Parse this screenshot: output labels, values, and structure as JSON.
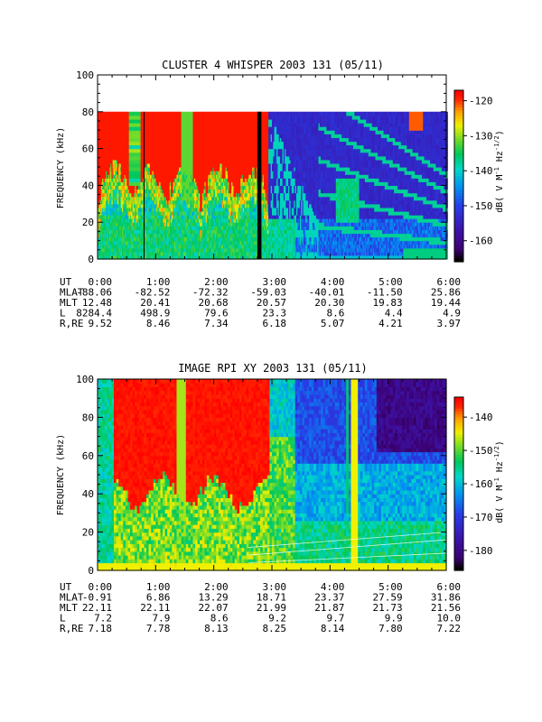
{
  "panels": [
    {
      "title": "CLUSTER 4 WHISPER 2003 131 (05/11)",
      "ylabel": "FREQUENCY (kHz)",
      "cbar_label_main": "dB( V M",
      "cbar_label_sup1": "-1",
      "cbar_label_mid": " Hz",
      "cbar_label_sup2": "-1/2",
      "cbar_label_end": ")",
      "rows": [
        {
          "label": "UT",
          "values": [
            "0:00",
            "1:00",
            "2:00",
            "3:00",
            "4:00",
            "5:00",
            "6:00"
          ]
        },
        {
          "label": "MLAT",
          "values": [
            "-88.06",
            "-82.52",
            "-72.32",
            "-59.03",
            "-40.01",
            "-11.50",
            "25.86"
          ]
        },
        {
          "label": "MLT",
          "values": [
            "12.48",
            "20.41",
            "20.68",
            "20.57",
            "20.30",
            "19.83",
            "19.44"
          ]
        },
        {
          "label": "L",
          "values": [
            "8284.4",
            "498.9",
            "79.6",
            "23.3",
            "8.6",
            "4.4",
            "4.9"
          ]
        },
        {
          "label": "R,RE",
          "values": [
            "9.52",
            "8.46",
            "7.34",
            "6.18",
            "5.07",
            "4.21",
            "3.97"
          ]
        }
      ]
    },
    {
      "title": "IMAGE RPI XY 2003 131 (05/11)",
      "ylabel": "FREQUENCY (kHz)",
      "cbar_label_main": "dB( V M",
      "cbar_label_sup1": "-1",
      "cbar_label_mid": " Hz",
      "cbar_label_sup2": "-1/2",
      "cbar_label_end": ")",
      "rows": [
        {
          "label": "UT",
          "values": [
            "0:00",
            "1:00",
            "2:00",
            "3:00",
            "4:00",
            "5:00",
            "6:00"
          ]
        },
        {
          "label": "MLAT",
          "values": [
            "-0.91",
            "6.86",
            "13.29",
            "18.71",
            "23.37",
            "27.59",
            "31.86"
          ]
        },
        {
          "label": "MLT",
          "values": [
            "22.11",
            "22.11",
            "22.07",
            "21.99",
            "21.87",
            "21.73",
            "21.56"
          ]
        },
        {
          "label": "L",
          "values": [
            "7.2",
            "7.9",
            "8.6",
            "9.2",
            "9.7",
            "9.9",
            "10.0"
          ]
        },
        {
          "label": "R,RE",
          "values": [
            "7.18",
            "7.78",
            "8.13",
            "8.25",
            "8.14",
            "7.80",
            "7.22"
          ]
        }
      ]
    }
  ],
  "chart_data": [
    {
      "type": "heatmap",
      "title": "CLUSTER 4 WHISPER 2003 131 (05/11)",
      "xlabel": "",
      "ylabel": "FREQUENCY (kHz)",
      "x_ticks": [
        "0:00",
        "1:00",
        "2:00",
        "3:00",
        "4:00",
        "5:00",
        "6:00"
      ],
      "xlim_hours": [
        0,
        6
      ],
      "ylim": [
        0,
        100
      ],
      "y_ticks": [
        0,
        20,
        40,
        60,
        80,
        100
      ],
      "data_frequency_max_khz": 80,
      "colorbar": {
        "label": "dB( V M-1 Hz-1/2)",
        "range": [
          -166,
          -117
        ],
        "ticks": [
          -120,
          -130,
          -140,
          -150,
          -160
        ]
      },
      "features": [
        {
          "kind": "saturated_emission",
          "t_start_hours": 0.2,
          "t_end_hours": 2.9,
          "f_min_khz": 40,
          "f_max_khz": 80,
          "level_db": -118
        },
        {
          "kind": "data_gap_line",
          "t_hours": 0.8
        },
        {
          "kind": "data_gap_band",
          "t_start_hours": 2.75,
          "t_end_hours": 2.82
        },
        {
          "kind": "harmonic_bands",
          "t_start_hours": 3.8,
          "t_end_hours": 6.0
        }
      ]
    },
    {
      "type": "heatmap",
      "title": "IMAGE RPI XY 2003 131 (05/11)",
      "xlabel": "",
      "ylabel": "FREQUENCY (kHz)",
      "x_ticks": [
        "0:00",
        "1:00",
        "2:00",
        "3:00",
        "4:00",
        "5:00",
        "6:00"
      ],
      "xlim_hours": [
        0,
        6
      ],
      "ylim": [
        0,
        100
      ],
      "y_ticks": [
        0,
        20,
        40,
        60,
        80,
        100
      ],
      "colorbar": {
        "label": "dB( V M-1 Hz-1/2)",
        "range": [
          -186,
          -134
        ],
        "ticks": [
          -140,
          -150,
          -160,
          -170,
          -180
        ]
      },
      "features": [
        {
          "kind": "saturated_emission",
          "t_start_hours": 0.3,
          "t_end_hours": 2.9,
          "f_min_khz": 40,
          "f_max_khz": 100,
          "level_db": -136
        },
        {
          "kind": "quiet_region",
          "t_start_hours": 4.8,
          "t_end_hours": 6.0,
          "f_min_khz": 60,
          "f_max_khz": 100,
          "level_db": -185
        },
        {
          "kind": "vertical_stripe",
          "t_hours": 4.4
        }
      ]
    }
  ]
}
